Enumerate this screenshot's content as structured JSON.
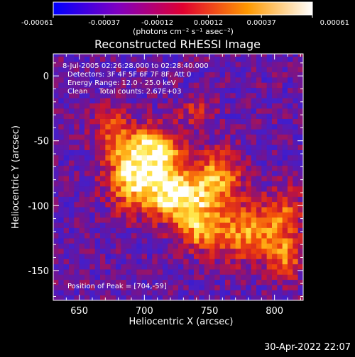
{
  "chart_data": {
    "type": "heatmap",
    "title": "Reconstructed RHESSI Image",
    "xlabel": "Heliocentric X (arcsec)",
    "ylabel": "Heliocentric Y (arcsec)",
    "xlim": [
      630,
      822
    ],
    "ylim": [
      -173,
      17
    ],
    "x_ticks": [
      650,
      700,
      750,
      800
    ],
    "y_ticks": [
      0,
      -50,
      -100,
      -150
    ],
    "colorbar": {
      "min": -0.00061,
      "max": 0.00061,
      "tick_values": [
        -0.00061,
        -0.00037,
        -0.00012,
        0.00012,
        0.00037,
        0.00061
      ],
      "tick_labels": [
        "-0.00061",
        "-0.00037",
        "-0.00012",
        "0.00012",
        "0.00037",
        "0.00061"
      ],
      "units_label": "(photons cm⁻² s⁻¹ asec⁻²)"
    },
    "annotations": [
      "8-Jul-2005 02:26:28.000 to 02:28:40.000",
      "Detectors: 3F 4F 5F 6F 7F 8F, Att 0",
      "Energy Range: 12.0 - 25.0 keV",
      "Clean     Total counts: 2.67E+03"
    ],
    "peak_label": "Position of Peak = [704,-59]",
    "peak": [
      704,
      -59
    ],
    "hotspots": [
      {
        "x": 704,
        "y": -59,
        "amp": 1.0,
        "sx": 17,
        "sy": 13
      },
      {
        "x": 728,
        "y": -93,
        "amp": 0.95,
        "sx": 18,
        "sy": 14
      },
      {
        "x": 692,
        "y": -82,
        "amp": 0.7,
        "sx": 15,
        "sy": 15
      },
      {
        "x": 758,
        "y": -76,
        "amp": 0.6,
        "sx": 12,
        "sy": 14
      },
      {
        "x": 782,
        "y": -120,
        "amp": 0.65,
        "sx": 22,
        "sy": 16
      },
      {
        "x": 808,
        "y": -140,
        "amp": 0.45,
        "sx": 10,
        "sy": 12
      },
      {
        "x": 742,
        "y": -120,
        "amp": 0.5,
        "sx": 12,
        "sy": 10
      },
      {
        "x": 675,
        "y": -40,
        "amp": 0.4,
        "sx": 10,
        "sy": 12
      },
      {
        "x": 808,
        "y": -100,
        "amp": 0.3,
        "sx": 9,
        "sy": 12
      },
      {
        "x": 740,
        "y": -28,
        "amp": 0.35,
        "sx": 10,
        "sy": 8
      }
    ]
  },
  "footer": {
    "timestamp": "30-Apr-2022 22:07"
  }
}
